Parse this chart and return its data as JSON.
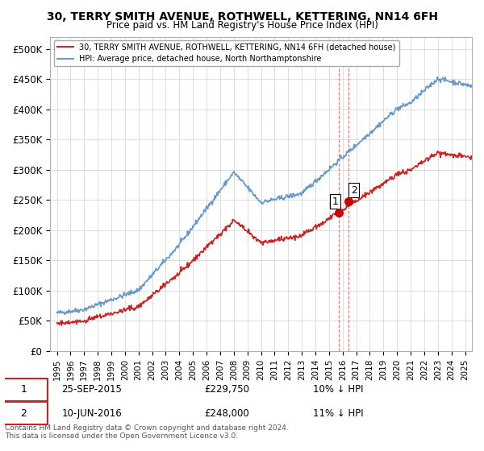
{
  "title": "30, TERRY SMITH AVENUE, ROTHWELL, KETTERING, NN14 6FH",
  "subtitle": "Price paid vs. HM Land Registry's House Price Index (HPI)",
  "xlabel": "",
  "ylabel": "",
  "ylim": [
    0,
    520000
  ],
  "xlim_start": 1995,
  "xlim_end": 2025.5,
  "yticks": [
    0,
    50000,
    100000,
    150000,
    200000,
    250000,
    300000,
    350000,
    400000,
    450000,
    500000
  ],
  "ytick_labels": [
    "£0",
    "£50K",
    "£100K",
    "£150K",
    "£200K",
    "£250K",
    "£300K",
    "£350K",
    "£400K",
    "£450K",
    "£500K"
  ],
  "sale1_date": 2015.73,
  "sale1_price": 229750,
  "sale1_label": "1",
  "sale2_date": 2016.44,
  "sale2_price": 248000,
  "sale2_label": "2",
  "hpi_line_color": "#6699cc",
  "price_line_color": "#cc2222",
  "dot_color": "#cc0000",
  "vline_color": "#cc4444",
  "background_color": "#ffffff",
  "grid_color": "#dddddd",
  "legend_text_1": "30, TERRY SMITH AVENUE, ROTHWELL, KETTERING, NN14 6FH (detached house)",
  "legend_text_2": "HPI: Average price, detached house, North Northamptonshire",
  "footer_text": "Contains HM Land Registry data © Crown copyright and database right 2024.\nThis data is licensed under the Open Government Licence v3.0.",
  "table_row1": "1    25-SEP-2015         £229,750        10% ↓ HPI",
  "table_row2": "2    10-JUN-2016         £248,000        11% ↓ HPI"
}
